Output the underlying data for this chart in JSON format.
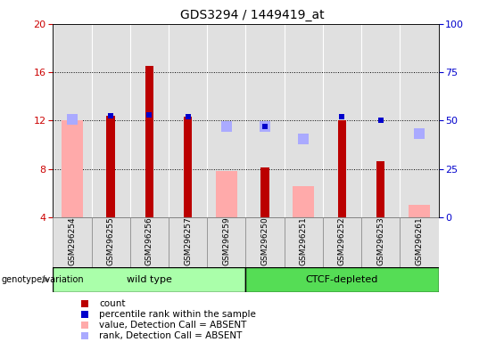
{
  "title": "GDS3294 / 1449419_at",
  "samples": [
    "GSM296254",
    "GSM296255",
    "GSM296256",
    "GSM296257",
    "GSM296259",
    "GSM296250",
    "GSM296251",
    "GSM296252",
    "GSM296253",
    "GSM296261"
  ],
  "count": [
    null,
    12.4,
    16.5,
    12.3,
    null,
    8.1,
    null,
    12.0,
    8.6,
    null
  ],
  "percentile_rank": [
    null,
    12.4,
    12.5,
    12.3,
    null,
    11.5,
    null,
    12.3,
    12.0,
    null
  ],
  "value_absent": [
    12.0,
    null,
    null,
    null,
    7.8,
    null,
    6.6,
    null,
    null,
    5.0
  ],
  "rank_absent": [
    12.1,
    null,
    null,
    null,
    11.5,
    11.5,
    10.5,
    null,
    null,
    10.9
  ],
  "ylim_left": [
    4,
    20
  ],
  "ylim_right": [
    0,
    100
  ],
  "yticks_left": [
    4,
    8,
    12,
    16,
    20
  ],
  "yticks_right": [
    0,
    25,
    50,
    75,
    100
  ],
  "ylabel_left_color": "#cc0000",
  "ylabel_right_color": "#0000cc",
  "count_color": "#bb0000",
  "percentile_color": "#0000cc",
  "value_absent_color": "#ffaaaa",
  "rank_absent_color": "#aaaaff",
  "group_color_wt": "#aaffaa",
  "group_color_ctcf": "#55dd55",
  "plot_bg_color": "#e0e0e0",
  "legend_items": [
    "count",
    "percentile rank within the sample",
    "value, Detection Call = ABSENT",
    "rank, Detection Call = ABSENT"
  ],
  "legend_colors": [
    "#bb0000",
    "#0000cc",
    "#ffaaaa",
    "#aaaaff"
  ]
}
